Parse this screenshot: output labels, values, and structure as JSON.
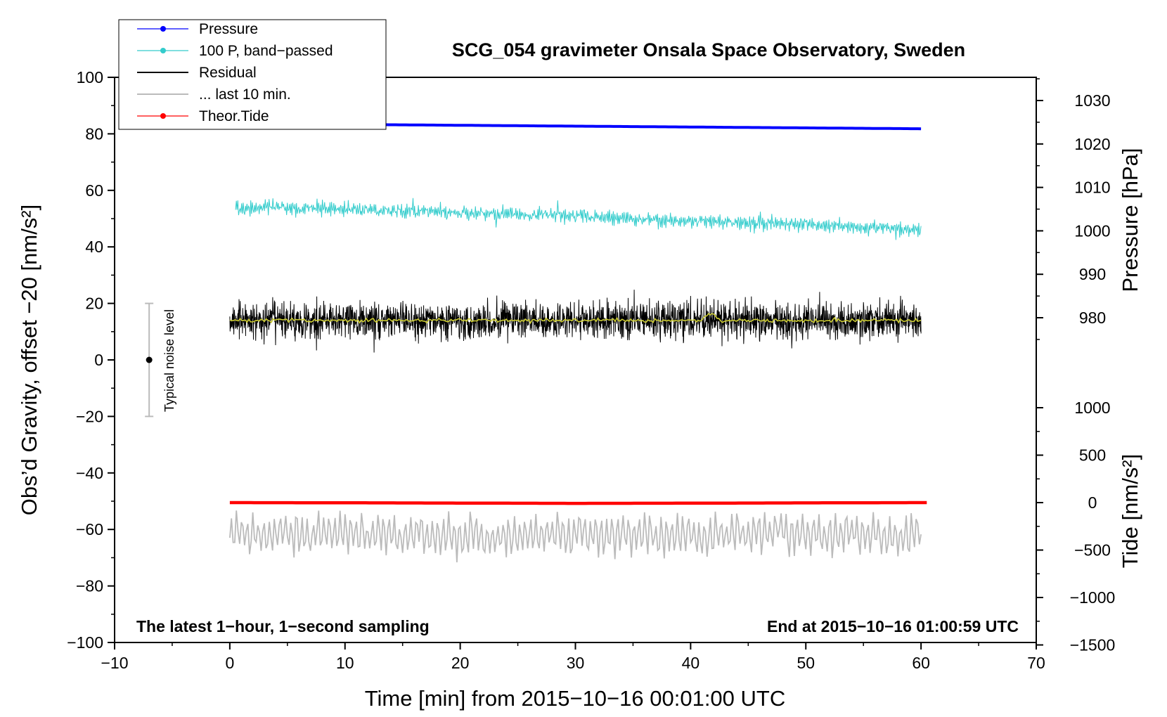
{
  "chart_data": {
    "type": "line",
    "title": "SCG_054 gravimeter Onsala Space Observatory, Sweden",
    "xlabel": "Time [min] from 2015−10−16 00:01:00 UTC",
    "ylabel": "Obs’d Gravity, offset −20 [nm/s²]",
    "ylabel_right_top": "Pressure [hPa]",
    "ylabel_right_bottom": "Tide [nm/s²]",
    "xlim": [
      -10,
      70
    ],
    "ylim": [
      -100,
      100
    ],
    "pressure_axis_lim": [
      975,
      1033
    ],
    "tide_axis_lim": [
      -1500,
      1000
    ],
    "x_ticks": [
      {
        "v": -10,
        "label": "−10"
      },
      {
        "v": 0,
        "label": "0"
      },
      {
        "v": 10,
        "label": "10"
      },
      {
        "v": 20,
        "label": "20"
      },
      {
        "v": 30,
        "label": "30"
      },
      {
        "v": 40,
        "label": "40"
      },
      {
        "v": 50,
        "label": "50"
      },
      {
        "v": 60,
        "label": "60"
      },
      {
        "v": 70,
        "label": "70"
      }
    ],
    "y_ticks": [
      {
        "v": 100,
        "label": "100"
      },
      {
        "v": 80,
        "label": "80"
      },
      {
        "v": 60,
        "label": "60"
      },
      {
        "v": 40,
        "label": "40"
      },
      {
        "v": 20,
        "label": "20"
      },
      {
        "v": 0,
        "label": "0"
      },
      {
        "v": -20,
        "label": "−20"
      },
      {
        "v": -40,
        "label": "−40"
      },
      {
        "v": -60,
        "label": "−60"
      },
      {
        "v": -80,
        "label": "−80"
      },
      {
        "v": -100,
        "label": "−100"
      }
    ],
    "pressure_ticks": [
      {
        "v": 1030,
        "label": "1030"
      },
      {
        "v": 1020,
        "label": "1020"
      },
      {
        "v": 1010,
        "label": "1010"
      },
      {
        "v": 1000,
        "label": "1000"
      },
      {
        "v": 990,
        "label": "990"
      },
      {
        "v": 980,
        "label": "980"
      }
    ],
    "tide_ticks": [
      {
        "v": 1000,
        "label": "1000"
      },
      {
        "v": 500,
        "label": "500"
      },
      {
        "v": 0,
        "label": "0"
      },
      {
        "v": -500,
        "label": "−500"
      },
      {
        "v": -1000,
        "label": "−1000"
      },
      {
        "v": -1500,
        "label": "−1500"
      }
    ],
    "series": [
      {
        "name": "Pressure",
        "color": "#0000ff",
        "axis": "pressure",
        "x": [
          0,
          10,
          20,
          30,
          40,
          50,
          60
        ],
        "y": [
          1024.7,
          1024.5,
          1024.3,
          1024.1,
          1023.9,
          1023.7,
          1023.5
        ]
      },
      {
        "name": "100 P, band−passed",
        "color": "#33cccc",
        "axis": "gravity",
        "x": [
          0.5,
          10,
          20,
          30,
          40,
          50,
          60
        ],
        "y": [
          54,
          53.5,
          52,
          51,
          49,
          48,
          46
        ],
        "noise_amplitude": 3.5
      },
      {
        "name": "Residual",
        "color": "#000000",
        "axis": "gravity",
        "x": [
          0,
          60
        ],
        "y": [
          14,
          14
        ],
        "noise_amplitude": 8
      },
      {
        "name": "... last 10 min.",
        "color": "#bbbbbb",
        "axis": "gravity",
        "x": [
          0,
          10,
          20,
          30,
          40,
          50,
          60
        ],
        "y": [
          -62,
          -62,
          -62,
          -62,
          -62,
          -62,
          -62
        ],
        "oscillation_amplitude": 7
      },
      {
        "name": "Theor.Tide",
        "color": "#ff0000",
        "axis": "tide",
        "x": [
          0,
          10,
          20,
          30,
          40,
          50,
          60
        ],
        "y": [
          0,
          -2,
          -5,
          -8,
          -6,
          -3,
          0
        ]
      }
    ],
    "smoothed_residual": {
      "color": "#cccc33",
      "y": 14
    },
    "noise_level": {
      "label": "Typical noise level",
      "x": -7,
      "center": 0,
      "low": -20,
      "high": 20
    },
    "annotations": {
      "left_note": "The latest 1−hour, 1−second sampling",
      "right_note": "End at 2015−10−16 01:00:59 UTC"
    },
    "legend_position": "top-left",
    "grid": false
  }
}
